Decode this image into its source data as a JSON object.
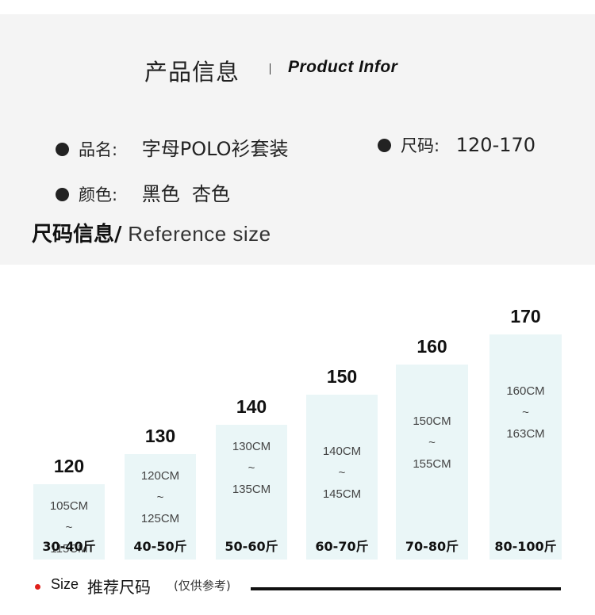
{
  "header": {
    "title_cn": "产品信息",
    "title_en": "Product Infor"
  },
  "info": {
    "name_label": "品名:",
    "name_value": "字母POLO衫套装",
    "size_label": "尺码:",
    "size_value": "120-170",
    "color_label": "颜色:",
    "color_value": "黑色  杏色"
  },
  "size_section": {
    "title_cn": "尺码信息/",
    "title_en": " Reference size"
  },
  "chart_data": {
    "type": "bar",
    "categories": [
      "120",
      "130",
      "140",
      "150",
      "160",
      "170"
    ],
    "height_ranges": [
      "105CM\n~\n115CM",
      "120CM\n~\n125CM",
      "130CM\n~\n135CM",
      "140CM\n~\n145CM",
      "150CM\n~\n155CM",
      "160CM\n~\n163CM"
    ],
    "weights": [
      "30-40斤",
      "40-50斤",
      "50-60斤",
      "60-70斤",
      "70-80斤",
      "80-100斤"
    ],
    "values": [
      120,
      130,
      140,
      150,
      160,
      170
    ],
    "ylim": [
      95,
      170
    ]
  },
  "legend": {
    "size": "Size",
    "cn": "推荐尺码",
    "note": "(仅供参考)",
    "dot_color": "#e0201a"
  }
}
